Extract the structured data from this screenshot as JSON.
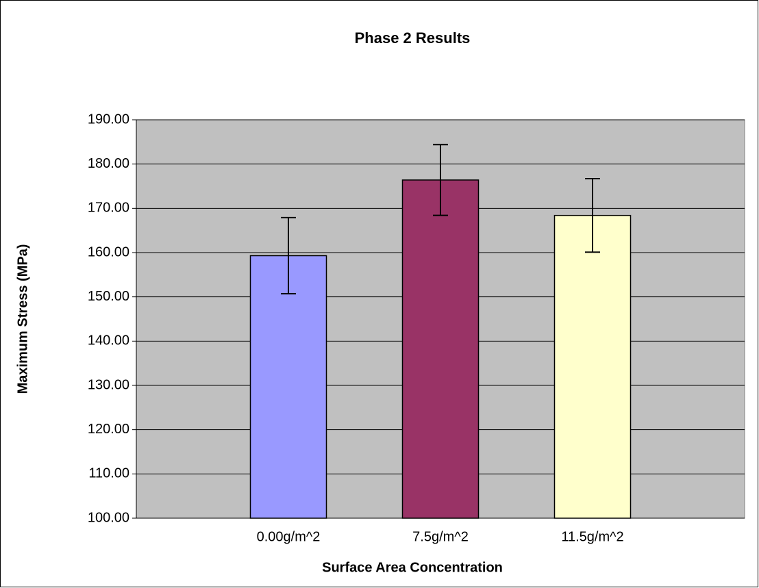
{
  "chart_data": {
    "type": "bar",
    "title": "Phase 2 Results",
    "x_label": "Surface Area Concentration",
    "y_label": "Maximum Stress (MPa)",
    "categories": [
      "0.00g/m^2",
      "7.5g/m^2",
      "11.5g/m^2"
    ],
    "values": [
      159.3,
      176.4,
      168.4
    ],
    "errors": [
      8.6,
      8.0,
      8.3
    ],
    "colors": [
      "#9999ff",
      "#993366",
      "#ffffcc"
    ],
    "ylim": [
      100,
      190
    ],
    "yticks": [
      {
        "value": 100,
        "label": "100.00"
      },
      {
        "value": 110,
        "label": "110.00"
      },
      {
        "value": 120,
        "label": "120.00"
      },
      {
        "value": 130,
        "label": "130.00"
      },
      {
        "value": 140,
        "label": "140.00"
      },
      {
        "value": 150,
        "label": "150.00"
      },
      {
        "value": 160,
        "label": "160.00"
      },
      {
        "value": 170,
        "label": "170.00"
      },
      {
        "value": 180,
        "label": "180.00"
      },
      {
        "value": 190,
        "label": "190.00"
      }
    ],
    "grid": true
  }
}
